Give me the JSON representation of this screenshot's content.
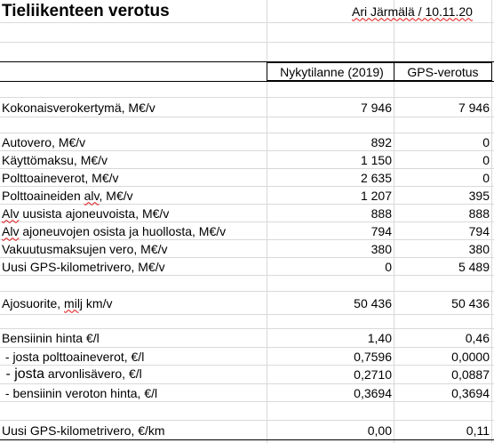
{
  "title": "Tieliikenteen verotus",
  "author_date": "Ari Järmälä / 10.11.20",
  "columns": {
    "current": "Nykytilanne (2019)",
    "gps": "GPS-verotus"
  },
  "rows": {
    "kokonais": {
      "label": "Kokonaisverokertymä, M€/v",
      "current": "7 946",
      "gps": "7 946"
    },
    "autovero": {
      "label": "Autovero, M€/v",
      "current": "892",
      "gps": "0"
    },
    "kayttomaksu": {
      "label": "Käyttömaksu, M€/v",
      "current": "1 150",
      "gps": "0"
    },
    "polttoaineverot": {
      "label": "Polttoaineverot, M€/v",
      "current": "2 635",
      "gps": "0"
    },
    "polttoaine_alv": {
      "label_pre": "Polttoaineiden ",
      "label_sq": "alv",
      "label_post": ", M€/v",
      "current": "1 207",
      "gps": "395"
    },
    "alv_uusista": {
      "label_sq": "Alv",
      "label_post": " uusista ajoneuvoista, M€/v",
      "current": "888",
      "gps": "888"
    },
    "alv_osista": {
      "label_sq": "Alv",
      "label_post": " ajoneuvojen osista ja huollosta, M€/v",
      "current": "794",
      "gps": "794"
    },
    "vakuutus": {
      "label": "Vakuutusmaksujen vero, M€/v",
      "current": "380",
      "gps": "380"
    },
    "gps_vero": {
      "label": "Uusi GPS-kilometrivero, M€/v",
      "current": "0",
      "gps": "5 489"
    },
    "ajosuorite": {
      "label_pre": "Ajosuorite, ",
      "label_sq": "milj",
      "label_post": " km/v",
      "current": "50 436",
      "gps": "50 436"
    },
    "bensiini": {
      "label": "Bensiinin hinta €/l",
      "current": "1,40",
      "gps": "0,46"
    },
    "josta_polttoaine": {
      "label": " - josta polttoaineverot, €/l",
      "current": "0,7596",
      "gps": "0,0000"
    },
    "josta_arvonlisa": {
      "label_big": " - josta",
      "label_post": " arvonlisävero, €/l",
      "current": "0,2710",
      "gps": "0,0887"
    },
    "veroton": {
      "label": " - bensiinin veroton hinta, €/l",
      "current": "0,3694",
      "gps": "0,3694"
    },
    "gps_km": {
      "label": "Uusi GPS-kilometrivero, €/km",
      "current": "0,00",
      "gps": "0,11"
    }
  }
}
